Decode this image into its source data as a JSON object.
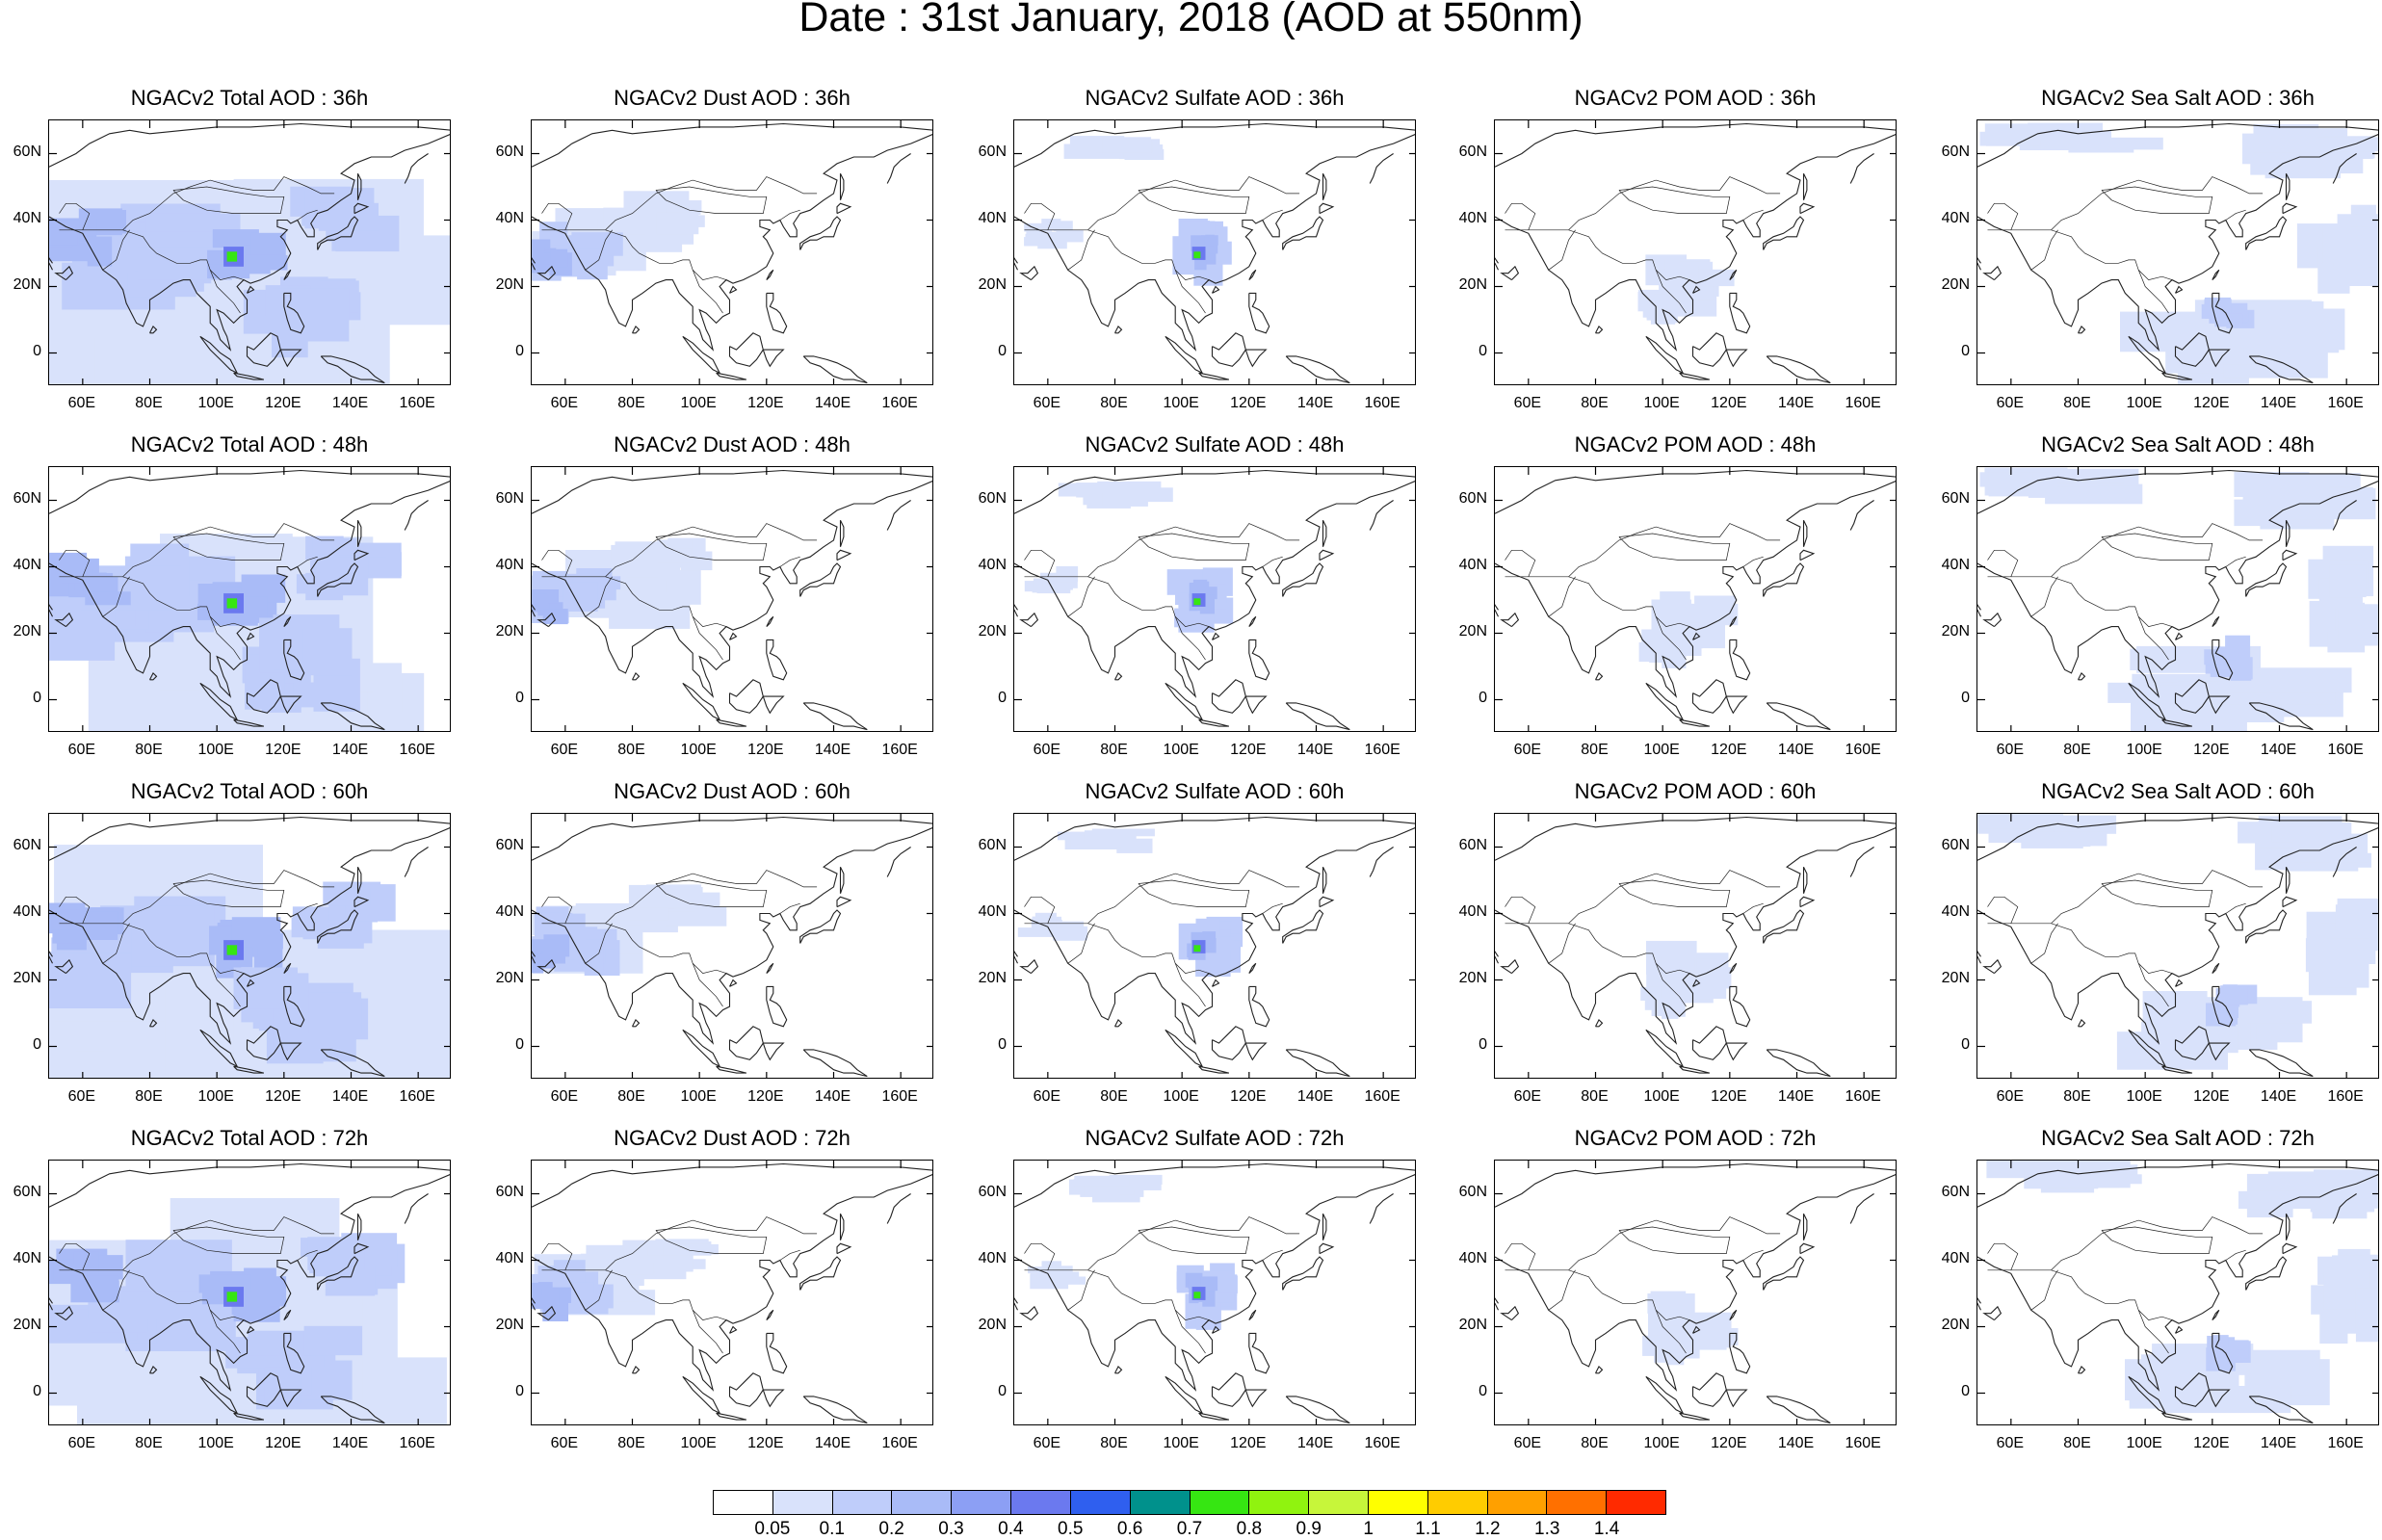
{
  "title": "Date : 31st January, 2018 (AOD at 550nm)",
  "rows": [
    {
      "hour": "36h",
      "panels": [
        "NGACv2 Total AOD : 36h",
        "NGACv2 Dust AOD : 36h",
        "NGACv2 Sulfate AOD : 36h",
        "NGACv2 POM AOD : 36h",
        "NGACv2 Sea Salt AOD : 36h"
      ]
    },
    {
      "hour": "48h",
      "panels": [
        "NGACv2 Total AOD : 48h",
        "NGACv2 Dust AOD : 48h",
        "NGACv2 Sulfate AOD : 48h",
        "NGACv2 POM AOD : 48h",
        "NGACv2 Sea Salt AOD : 48h"
      ]
    },
    {
      "hour": "60h",
      "panels": [
        "NGACv2 Total AOD : 60h",
        "NGACv2 Dust AOD : 60h",
        "NGACv2 Sulfate AOD : 60h",
        "NGACv2 POM AOD : 60h",
        "NGACv2 Sea Salt AOD : 60h"
      ]
    },
    {
      "hour": "72h",
      "panels": [
        "NGACv2 Total AOD : 72h",
        "NGACv2 Dust AOD : 72h",
        "NGACv2 Sulfate AOD : 72h",
        "NGACv2 POM AOD : 72h",
        "NGACv2 Sea Salt  AOD : 72h"
      ]
    }
  ],
  "axes": {
    "lat_ticks": [
      "60N",
      "40N",
      "20N",
      "0"
    ],
    "lon_ticks": [
      "60E",
      "80E",
      "100E",
      "120E",
      "140E",
      "160E"
    ],
    "lat_range": [
      -10,
      70
    ],
    "lon_range": [
      50,
      170
    ]
  },
  "colorbar": {
    "labels": [
      "0.05",
      "0.1",
      "0.2",
      "0.3",
      "0.4",
      "0.5",
      "0.6",
      "0.7",
      "0.8",
      "0.9",
      "1",
      "1.1",
      "1.2",
      "1.3",
      "1.4"
    ],
    "colors": [
      "#ffffff",
      "#d9e2fb",
      "#bfcdfa",
      "#a9bbf7",
      "#8c9ff4",
      "#6b79ef",
      "#2f5fef",
      "#00918c",
      "#36e612",
      "#90f30f",
      "#c7f63a",
      "#ffff00",
      "#ffcc00",
      "#ffa000",
      "#ff7000",
      "#ff2a00"
    ]
  }
}
